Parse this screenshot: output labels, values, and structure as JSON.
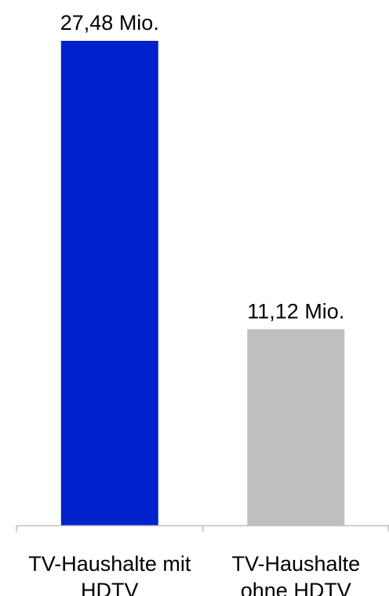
{
  "chart_data": {
    "type": "bar",
    "categories": [
      [
        "TV-Haushalte mit",
        "HDTV"
      ],
      [
        "TV-Haushalte",
        "ohne HDTV"
      ]
    ],
    "values": [
      27.48,
      11.12
    ],
    "data_labels": [
      "27,48 Mio.",
      "11,12 Mio."
    ],
    "colors": [
      "#0022CC",
      "#BFBFBF"
    ],
    "title": "",
    "xlabel": "",
    "ylabel": "",
    "ylim": [
      0,
      27.48
    ],
    "grid": false,
    "legend": "none"
  }
}
